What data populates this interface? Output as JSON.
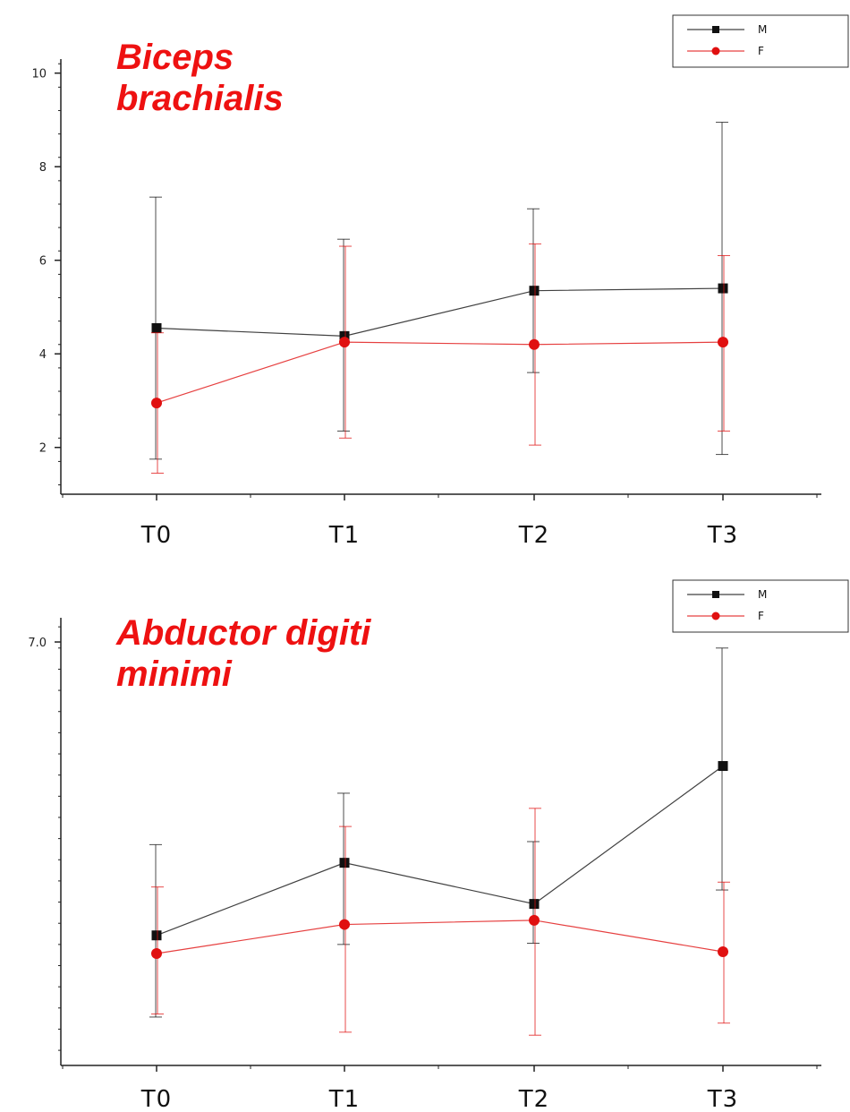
{
  "chart_data": [
    {
      "type": "line",
      "title": "Biceps\nbrachialis",
      "categories": [
        "T0",
        "T1",
        "T2",
        "T3"
      ],
      "ylim": [
        1.0,
        10.3
      ],
      "yticks": [
        2,
        4,
        6,
        8,
        10
      ],
      "series": [
        {
          "name": "M",
          "color": "#111111",
          "marker": "square",
          "values": [
            4.55,
            4.38,
            5.35,
            5.4
          ],
          "err_low": [
            1.75,
            2.35,
            3.6,
            1.85
          ],
          "err_high": [
            7.35,
            6.45,
            7.1,
            8.95
          ]
        },
        {
          "name": "F",
          "color": "#e01010",
          "marker": "circle",
          "values": [
            2.95,
            4.25,
            4.2,
            4.25
          ],
          "err_low": [
            1.45,
            2.2,
            2.05,
            2.35
          ],
          "err_high": [
            4.45,
            6.3,
            6.35,
            6.1
          ]
        }
      ],
      "legend_position": "top-right",
      "grid": false
    },
    {
      "type": "line",
      "title": "Abductor digiti\nminimi",
      "categories": [
        "T0",
        "T1",
        "T2",
        "T3"
      ],
      "ylim": [
        0,
        7.4
      ],
      "yticks": [
        7.0
      ],
      "ytick_labels": [
        "7.0"
      ],
      "series": [
        {
          "name": "M",
          "color": "#111111",
          "marker": "square",
          "values": [
            2.15,
            3.35,
            2.67,
            4.95
          ],
          "err_low": [
            0.8,
            2.0,
            2.02,
            2.9
          ],
          "err_high": [
            3.65,
            4.5,
            3.7,
            6.9
          ]
        },
        {
          "name": "F",
          "color": "#e01010",
          "marker": "circle",
          "values": [
            1.85,
            2.33,
            2.4,
            1.88
          ],
          "err_low": [
            0.85,
            0.55,
            0.5,
            0.7
          ],
          "err_high": [
            2.95,
            3.95,
            4.25,
            3.03
          ]
        }
      ],
      "legend_position": "top-right",
      "grid": false
    }
  ]
}
